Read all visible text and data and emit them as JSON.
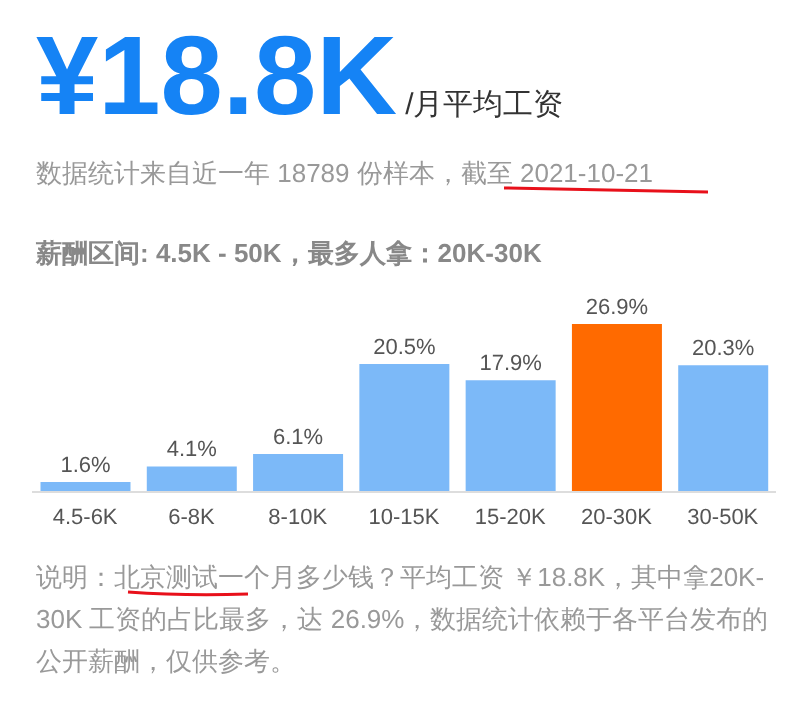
{
  "chart_data": {
    "type": "bar",
    "title": "¥18.8K",
    "subtitle": "/月平均工资",
    "annotations": [
      "数据统计来自近一年 18789 份样本，截至 2021-10-21",
      "薪酬区间: 4.5K - 50K，最多人拿：20K-30K",
      "说明：北京测试一个月多少钱？平均工资 ￥18.8K，其中拿20K-30K 工资的占比最多，达 26.9%，数据统计依赖于各平台发布的公开薪酬，仅供参考。"
    ],
    "categories": [
      "4.5-6K",
      "6-8K",
      "8-10K",
      "10-15K",
      "15-20K",
      "20-30K",
      "30-50K"
    ],
    "values": [
      1.6,
      4.1,
      6.1,
      20.5,
      17.9,
      26.9,
      20.3
    ],
    "value_labels": [
      "1.6%",
      "4.1%",
      "6.1%",
      "20.5%",
      "17.9%",
      "26.9%",
      "20.3%"
    ],
    "colors": [
      "#7cb9f8",
      "#7cb9f8",
      "#7cb9f8",
      "#7cb9f8",
      "#7cb9f8",
      "#ff6a00",
      "#7cb9f8"
    ]
  }
}
